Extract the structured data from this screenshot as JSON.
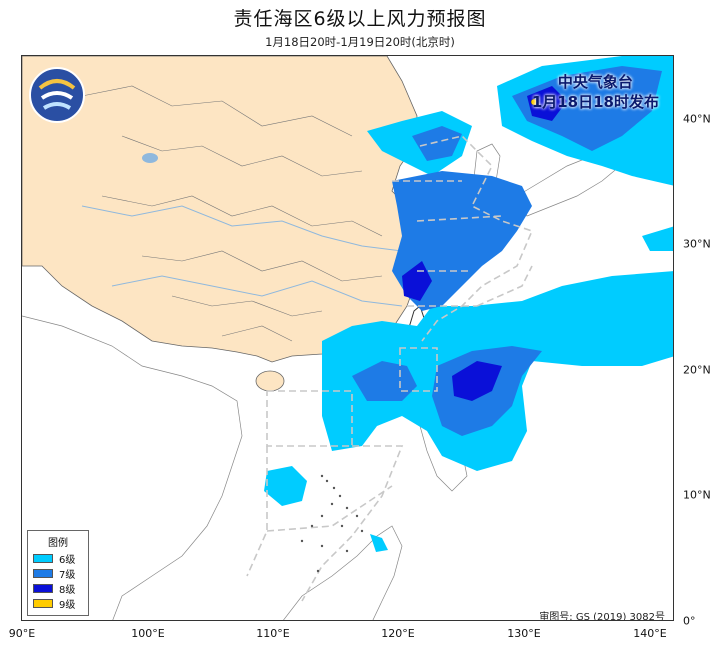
{
  "title": "责任海区6级以上风力预报图",
  "subtitle": "1月18日20时-1月19日20时(北京时)",
  "issuer": {
    "line1": "中央气象台",
    "line2": "1月18日18时发布"
  },
  "legend": {
    "title": "图例",
    "items": [
      {
        "label": "6级",
        "color": "#00ccff"
      },
      {
        "label": "7级",
        "color": "#1e7be6"
      },
      {
        "label": "8级",
        "color": "#0a10d8"
      },
      {
        "label": "9级",
        "color": "#ffcc00"
      }
    ]
  },
  "approval_number": "审图号: GS (2019) 3082号",
  "axes": {
    "x_ticks": [
      "90°E",
      "100°E",
      "110°E",
      "120°E",
      "130°E",
      "140°E"
    ],
    "y_ticks": [
      "40°N",
      "30°N",
      "20°N",
      "10°N",
      "0°"
    ]
  },
  "colors": {
    "land_china": "#fde5c3",
    "sea": "#ffffff",
    "boundary": "#666666",
    "river": "#8fb8dd"
  },
  "icons": {
    "logo": "cma-logo-icon"
  }
}
